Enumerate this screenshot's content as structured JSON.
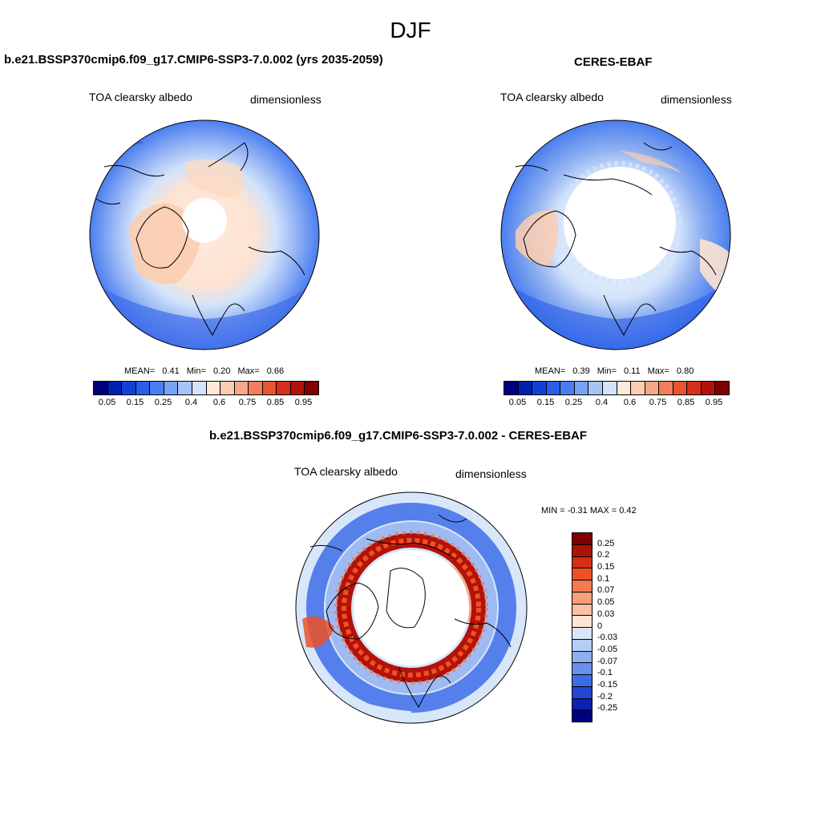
{
  "figure": {
    "season": "DJF"
  },
  "panels": {
    "model": {
      "title": "b.e21.BSSP370cmip6.f09_g17.CMIP6-SSP3-7.0.002 (yrs 2035-2059)",
      "variable": "TOA clearsky albedo",
      "units": "dimensionless",
      "mean_label": "MEAN=",
      "mean": "0.41",
      "min_label": "Min=",
      "min": "0.20",
      "max_label": "Max=",
      "max": "0.66"
    },
    "obs": {
      "title": "CERES-EBAF",
      "variable": "TOA clearsky albedo",
      "units": "dimensionless",
      "mean_label": "MEAN=",
      "mean": "0.39",
      "min_label": "Min=",
      "min": "0.11",
      "max_label": "Max=",
      "max": "0.80"
    },
    "diff": {
      "title": "b.e21.BSSP370cmip6.f09_g17.CMIP6-SSP3-7.0.002 - CERES-EBAF",
      "variable": "TOA clearsky albedo",
      "units": "dimensionless",
      "minmax_text": "MIN = -0.31 MAX = 0.42"
    }
  },
  "colorbars": {
    "abs": {
      "colors": [
        "#00007f",
        "#0020b0",
        "#1040d8",
        "#2a5ee8",
        "#4a7ef0",
        "#7aa2f4",
        "#a7c4f8",
        "#d2e3fb",
        "#ffe9da",
        "#fbcdb0",
        "#f7a888",
        "#f37d5c",
        "#ea5430",
        "#d63018",
        "#b21308",
        "#7f0000"
      ],
      "tick_labels": [
        "0.05",
        "0.15",
        "0.25",
        "0.4",
        "0.6",
        "0.75",
        "0.85",
        "0.95"
      ]
    },
    "diff": {
      "colors": [
        "#7f0000",
        "#a81504",
        "#d43014",
        "#ee5028",
        "#f47a50",
        "#f89e7a",
        "#fbc0a2",
        "#fde5d6",
        "#d8e6fa",
        "#b4cdf5",
        "#8eb0f0",
        "#6691ec",
        "#3e6ce8",
        "#2446d6",
        "#0c20b0",
        "#00007f"
      ],
      "tick_labels": [
        "0.25",
        "0.2",
        "0.15",
        "0.1",
        "0.07",
        "0.05",
        "0.03",
        "0",
        "-0.03",
        "-0.05",
        "-0.07",
        "-0.1",
        "-0.15",
        "-0.2",
        "-0.25"
      ]
    }
  }
}
